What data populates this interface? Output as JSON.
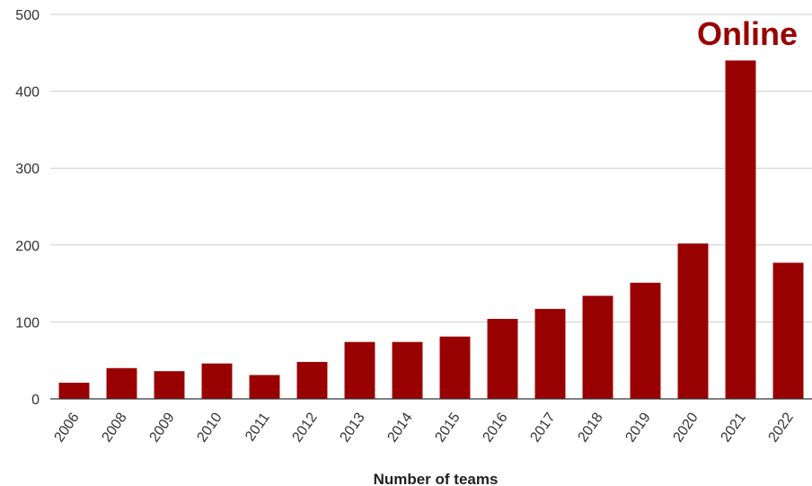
{
  "chart_data": {
    "type": "bar",
    "title": "",
    "xlabel": "Number of teams",
    "ylabel": "",
    "categories": [
      "2006",
      "2008",
      "2009",
      "2010",
      "2011",
      "2012",
      "2013",
      "2014",
      "2015",
      "2016",
      "2017",
      "2018",
      "2019",
      "2020",
      "2021",
      "2022"
    ],
    "values": [
      21,
      40,
      36,
      46,
      31,
      48,
      74,
      74,
      81,
      104,
      117,
      134,
      151,
      202,
      440,
      177
    ],
    "ylim": [
      0,
      500
    ],
    "yticks": [
      "0",
      "100",
      "200",
      "300",
      "400",
      "500"
    ],
    "grid": true,
    "legend": "none",
    "bar_color": "#990000",
    "annotation": {
      "text": "Online",
      "category": "2021",
      "color": "#990000"
    }
  }
}
